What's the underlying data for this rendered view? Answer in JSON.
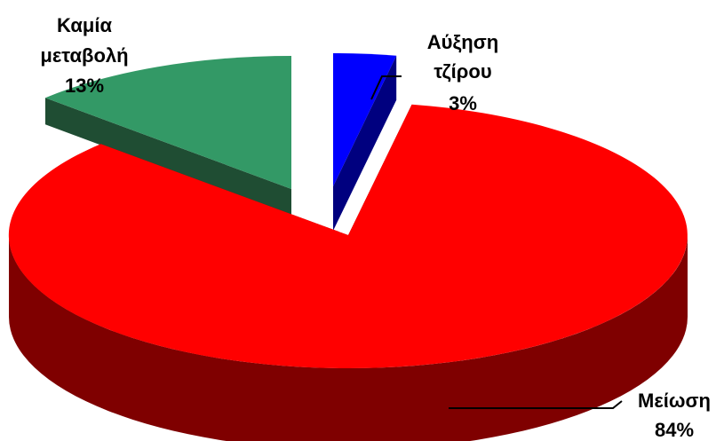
{
  "chart_data": {
    "type": "pie",
    "variant": "3d-exploded",
    "slices": [
      {
        "label_line1": "Αύξηση",
        "label_line2": "τζίρου",
        "pct_text": "3%",
        "value": 3,
        "color": "#0000ff",
        "side_color": "#00007f"
      },
      {
        "label_line1": "Μείωση",
        "label_line2": "",
        "pct_text": "84%",
        "value": 84,
        "color": "#ff0000",
        "side_color": "#7f0000"
      },
      {
        "label_line1": "Καμία",
        "label_line2": "μεταβολή",
        "pct_text": "13%",
        "value": 13,
        "color": "#339966",
        "side_color": "#1f4d33"
      }
    ]
  }
}
